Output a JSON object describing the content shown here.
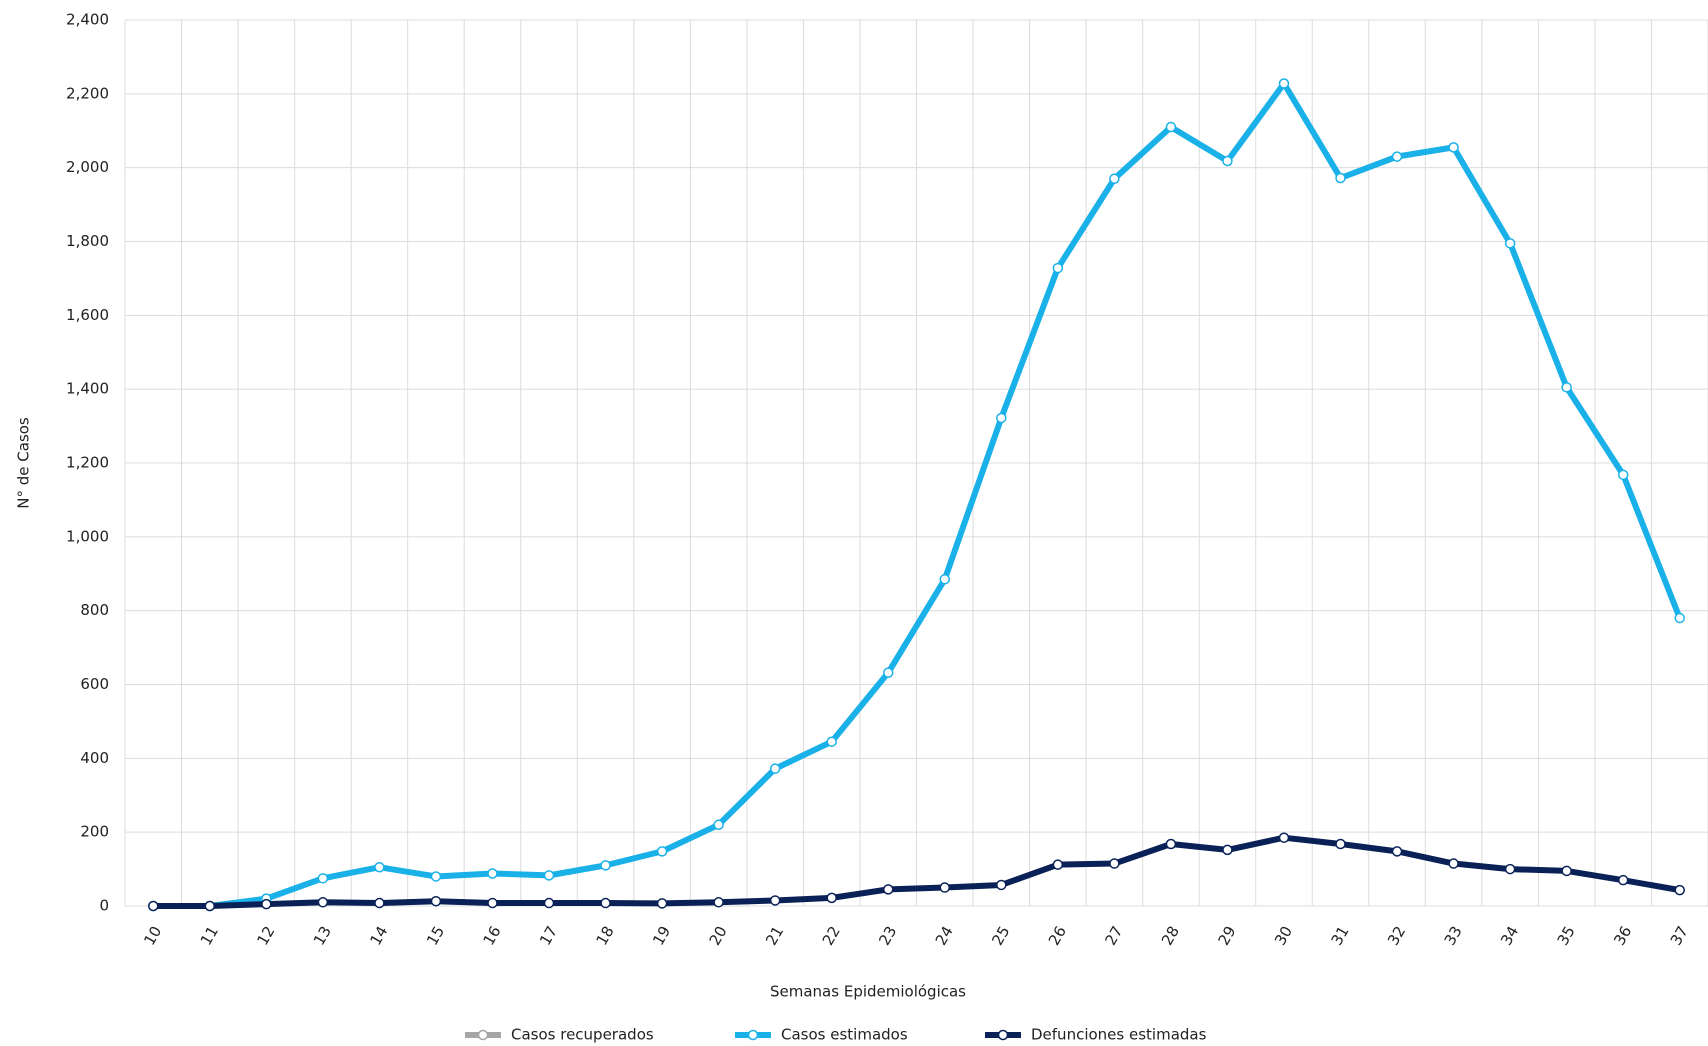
{
  "chart_data": {
    "type": "line",
    "x_label": "Semanas Epidemiológicas",
    "y_label": "N° de Casos",
    "categories": [
      "10",
      "11",
      "12",
      "13",
      "14",
      "15",
      "16",
      "17",
      "18",
      "19",
      "20",
      "21",
      "22",
      "23",
      "24",
      "25",
      "26",
      "27",
      "28",
      "29",
      "30",
      "31",
      "32",
      "33",
      "34",
      "35",
      "36",
      "37"
    ],
    "series": [
      {
        "name": "Casos recuperados",
        "color": "#a6a6a6",
        "values": [
          null,
          null,
          null,
          null,
          null,
          null,
          null,
          null,
          null,
          null,
          null,
          null,
          null,
          null,
          null,
          null,
          null,
          null,
          null,
          null,
          null,
          null,
          null,
          null,
          null,
          null,
          null,
          null
        ]
      },
      {
        "name": "Casos estimados",
        "color": "#1ab0e8",
        "values": [
          0,
          0,
          20,
          75,
          105,
          80,
          88,
          83,
          110,
          148,
          220,
          372,
          445,
          632,
          885,
          1322,
          1728,
          1970,
          2110,
          2018,
          2228,
          1972,
          2030,
          2055,
          1795,
          1405,
          1168,
          780
        ]
      },
      {
        "name": "Defunciones estimadas",
        "color": "#0a2157",
        "values": [
          0,
          0,
          5,
          10,
          8,
          13,
          8,
          8,
          8,
          7,
          10,
          15,
          22,
          45,
          50,
          57,
          112,
          115,
          168,
          152,
          185,
          168,
          148,
          115,
          100,
          95,
          70,
          43
        ]
      }
    ],
    "ylim": [
      0,
      2400
    ],
    "yticks": [
      0,
      200,
      400,
      600,
      800,
      {
        "value": 1000,
        "label": "1,000"
      },
      {
        "value": 1200,
        "label": "1,200"
      },
      {
        "value": 1400,
        "label": "1,400"
      },
      {
        "value": 1600,
        "label": "1,600"
      },
      {
        "value": 1800,
        "label": "1,800"
      },
      {
        "value": 2000,
        "label": "2,000"
      },
      {
        "value": 2200,
        "label": "2,200"
      },
      {
        "value": 2400,
        "label": "2,400"
      }
    ],
    "grid": true,
    "legend": "bottom"
  }
}
